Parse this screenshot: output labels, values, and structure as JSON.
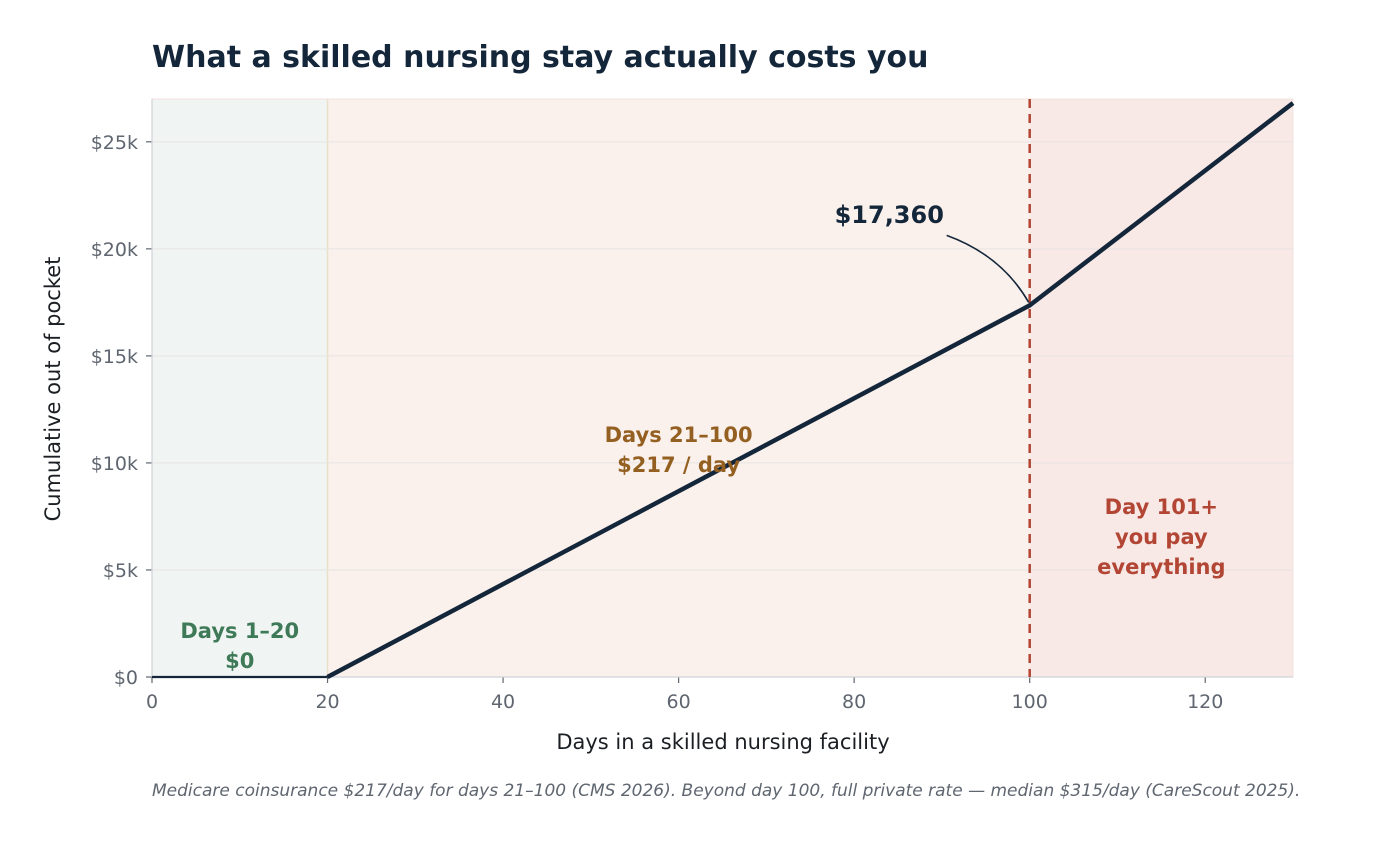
{
  "chart_data": {
    "type": "line",
    "title": "What a skilled nursing stay actually costs you",
    "xlabel": "Days in a skilled nursing facility",
    "ylabel": "Cumulative out of pocket",
    "xlim": [
      0,
      130
    ],
    "ylim": [
      0,
      27000
    ],
    "x_ticks": [
      0,
      20,
      40,
      60,
      80,
      100,
      120
    ],
    "y_ticks": [
      0,
      5000,
      10000,
      15000,
      20000,
      25000
    ],
    "y_tick_labels": [
      "$0",
      "$5k",
      "$10k",
      "$15k",
      "$20k",
      "$25k"
    ],
    "grid": "horizontal",
    "series": [
      {
        "x": [
          0,
          20,
          100,
          130
        ],
        "y": [
          0,
          0,
          17360,
          26810
        ],
        "color": "#14263a"
      }
    ],
    "zones": [
      {
        "from": 0,
        "to": 20,
        "color": "#f0f4f3",
        "label_lines": [
          "Days 1–20",
          "$0"
        ],
        "label_color": "#3e7a57"
      },
      {
        "from": 20,
        "to": 100,
        "color": "#fbf1ec",
        "label_lines": [
          "Days 21–100",
          "$217 / day"
        ],
        "label_color": "#946022"
      },
      {
        "from": 100,
        "to": 130,
        "color": "#f8e8e6",
        "label_lines": [
          "Day 101+",
          "you pay",
          "everything"
        ],
        "label_color": "#b24534"
      }
    ],
    "threshold_line": {
      "x": 100,
      "color": "#b24534",
      "style": "dashed"
    },
    "annotation": {
      "text": "$17,360",
      "x": 100,
      "y": 17360
    },
    "footnote": "Medicare coinsurance $217/day for days 21–100 (CMS 2026). Beyond day 100, full private rate — median $315/day (CareScout 2025)."
  }
}
